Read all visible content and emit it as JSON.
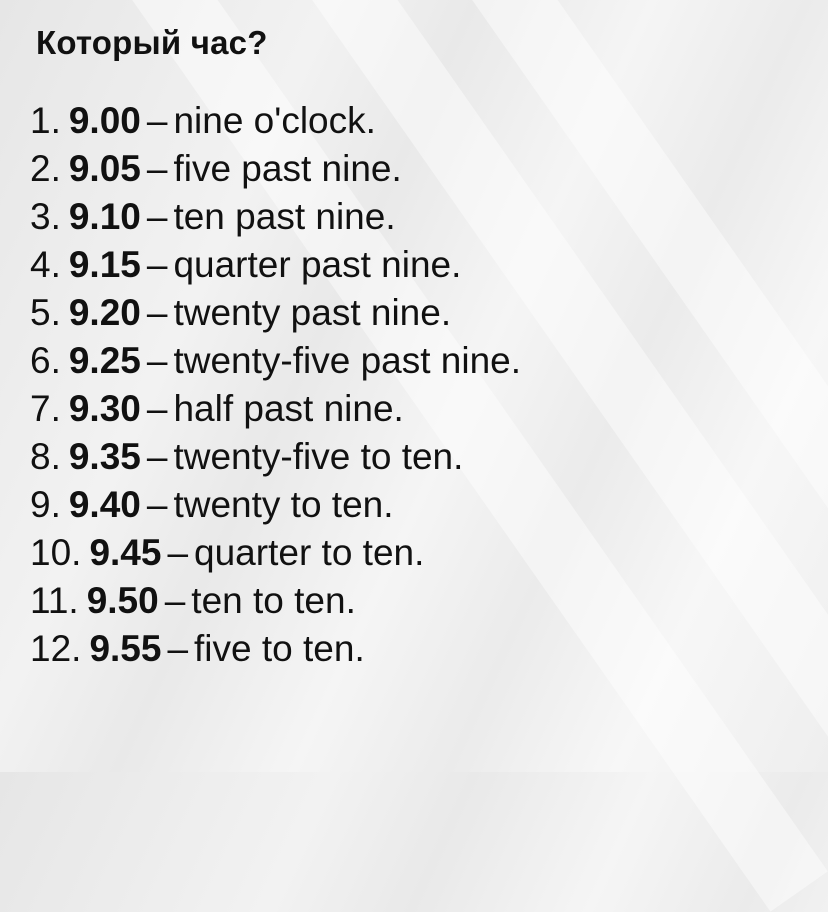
{
  "title": "Который час?",
  "items": [
    {
      "num": "1.",
      "time": "9.00",
      "dash": "–",
      "phrase": "nine o'clock."
    },
    {
      "num": "2.",
      "time": "9.05",
      "dash": "–",
      "phrase": "five past nine."
    },
    {
      "num": "3.",
      "time": "9.10",
      "dash": "–",
      "phrase": "ten past nine."
    },
    {
      "num": "4.",
      "time": "9.15",
      "dash": "–",
      "phrase": "quarter past nine."
    },
    {
      "num": "5.",
      "time": "9.20",
      "dash": "–",
      "phrase": "twenty past nine."
    },
    {
      "num": "6.",
      "time": "9.25",
      "dash": "–",
      "phrase": "twenty-five past nine."
    },
    {
      "num": "7.",
      "time": "9.30",
      "dash": "–",
      "phrase": "half past nine."
    },
    {
      "num": "8.",
      "time": "9.35",
      "dash": "–",
      "phrase": "twenty-five to ten."
    },
    {
      "num": "9.",
      "time": "9.40",
      "dash": "–",
      "phrase": "twenty to ten."
    },
    {
      "num": "10.",
      "time": "9.45",
      "dash": "–",
      "phrase": "quarter to ten."
    },
    {
      "num": "11.",
      "time": "9.50",
      "dash": "–",
      "phrase": "ten to ten."
    },
    {
      "num": "12.",
      "time": "9.55",
      "dash": "–",
      "phrase": "five to ten."
    }
  ]
}
